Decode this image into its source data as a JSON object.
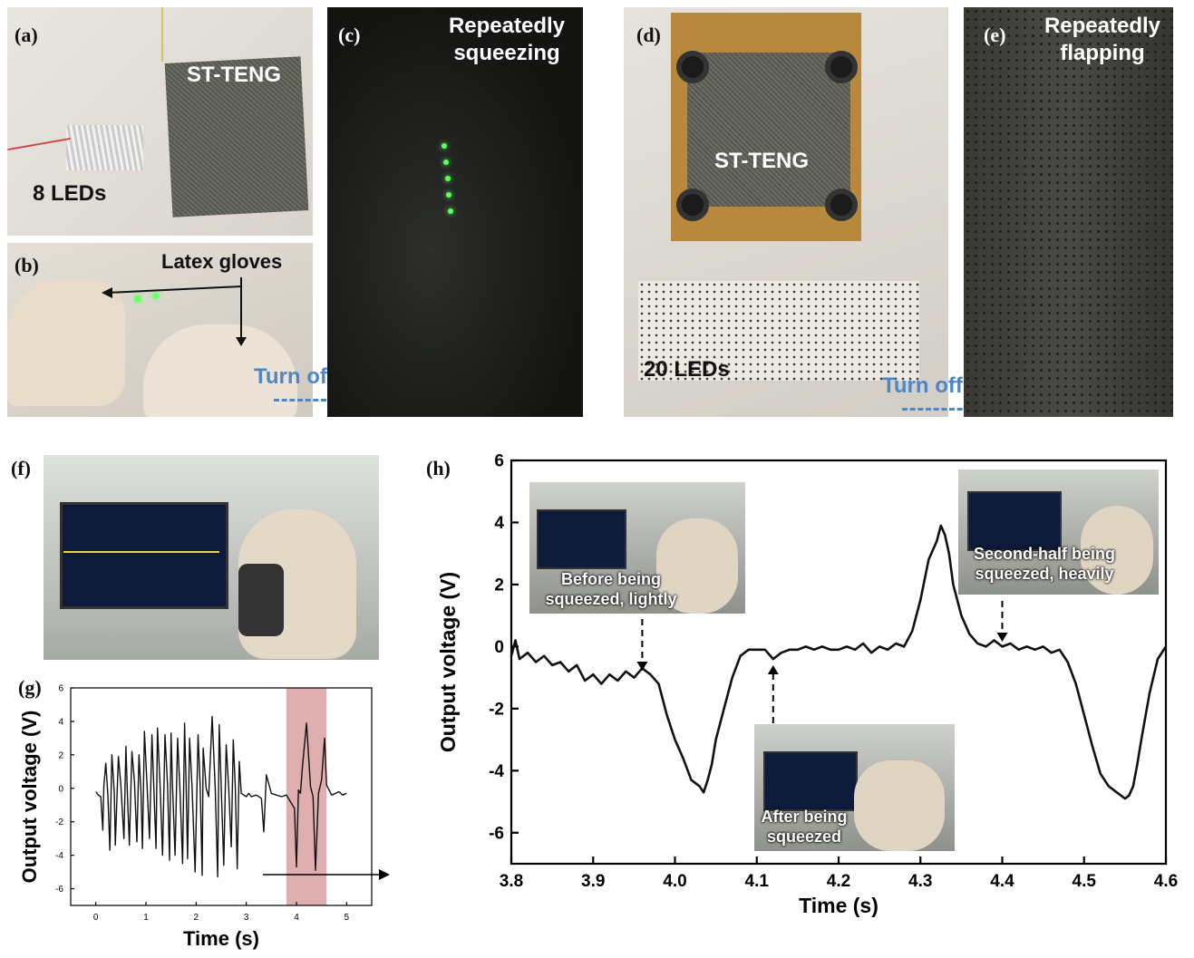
{
  "panels": {
    "a": {
      "label": "(a)",
      "device": "ST-TENG",
      "leds": "8 LEDs"
    },
    "b": {
      "label": "(b)",
      "gloves": "Latex gloves",
      "turn_off": "Turn off light"
    },
    "c": {
      "label": "(c)",
      "caption_line1": "Repeatedly",
      "caption_line2": "squeezing"
    },
    "d": {
      "label": "(d)",
      "device": "ST-TENG",
      "leds": "20 LEDs",
      "turn_off": "Turn off light"
    },
    "e": {
      "label": "(e)",
      "caption_line1": "Repeatedly",
      "caption_line2": "flapping"
    },
    "f": {
      "label": "(f)"
    },
    "g": {
      "label": "(g)"
    },
    "h": {
      "label": "(h)"
    }
  },
  "colors": {
    "highlight": "#d9a0a0",
    "arrow_text": "#4f86c6",
    "trace": "#111111"
  },
  "chart_data": [
    {
      "type": "line",
      "panel": "g",
      "xlabel": "Time (s)",
      "ylabel": "Output voltage (V)",
      "xlim": [
        -0.5,
        5.5
      ],
      "ylim": [
        -7,
        6
      ],
      "xticks": [
        0,
        1,
        2,
        3,
        4,
        5
      ],
      "yticks": [
        -6,
        -4,
        -2,
        0,
        2,
        4,
        6
      ],
      "highlight_region": [
        3.8,
        4.6
      ],
      "series": [
        {
          "x": [
            0.0,
            0.05,
            0.1,
            0.14,
            0.16,
            0.2,
            0.24,
            0.28,
            0.32,
            0.37,
            0.39,
            0.45,
            0.5,
            0.56,
            0.6,
            0.63,
            0.67,
            0.72,
            0.77,
            0.82,
            0.86,
            0.9,
            0.93,
            0.97,
            1.02,
            1.07,
            1.12,
            1.16,
            1.2,
            1.23,
            1.28,
            1.33,
            1.38,
            1.43,
            1.47,
            1.5,
            1.53,
            1.58,
            1.63,
            1.68,
            1.73,
            1.77,
            1.8,
            1.83,
            1.87,
            1.92,
            1.98,
            2.04,
            2.08,
            2.12,
            2.14,
            2.2,
            2.25,
            2.32,
            2.38,
            2.43,
            2.46,
            2.5,
            2.55,
            2.6,
            2.65,
            2.7,
            2.74,
            2.78,
            2.82,
            2.86,
            2.9,
            2.95,
            3.0,
            3.05,
            3.1,
            3.2,
            3.3,
            3.35,
            3.4,
            3.5,
            3.6,
            3.7,
            3.8,
            3.9,
            3.96,
            4.0,
            4.04,
            4.08,
            4.12,
            4.2,
            4.28,
            4.33,
            4.38,
            4.44,
            4.5,
            4.56,
            4.6,
            4.7,
            4.78,
            4.85,
            4.92,
            5.0
          ],
          "y": [
            -0.2,
            -0.4,
            -0.5,
            -2.5,
            0.1,
            1.5,
            -0.3,
            -3.7,
            2.0,
            -0.3,
            -3.4,
            1.9,
            0.2,
            -3.0,
            2.5,
            -0.3,
            -3.4,
            2.2,
            0.4,
            -3.2,
            2.0,
            -0.2,
            -3.6,
            3.4,
            0.3,
            -3.0,
            3.2,
            -0.3,
            -3.6,
            3.6,
            0.3,
            -4.0,
            3.2,
            0.2,
            -4.3,
            3.3,
            0.1,
            -4.0,
            3.0,
            -0.2,
            -4.5,
            3.9,
            0.2,
            -4.2,
            3.0,
            0.0,
            -5.0,
            3.2,
            0.1,
            -5.2,
            2.4,
            0.0,
            -0.5,
            4.3,
            0.0,
            -5.3,
            3.8,
            0.1,
            -4.6,
            2.6,
            0.0,
            -3.5,
            2.9,
            0.1,
            -4.8,
            1.6,
            -0.3,
            -0.4,
            -0.5,
            -0.3,
            -0.5,
            -0.4,
            -0.6,
            -2.6,
            0.8,
            -0.3,
            -0.4,
            -0.5,
            -0.4,
            -0.9,
            -1.2,
            -4.7,
            -0.1,
            -0.3,
            1.3,
            3.9,
            0.1,
            -0.5,
            -4.9,
            -0.3,
            0.5,
            3.0,
            0.2,
            -0.4,
            -0.3,
            -0.2,
            -0.4,
            -0.3
          ]
        }
      ]
    },
    {
      "type": "line",
      "panel": "h",
      "xlabel": "Time (s)",
      "ylabel": "Output voltage (V)",
      "xlim": [
        3.8,
        4.6
      ],
      "ylim": [
        -7,
        6
      ],
      "xticks": [
        3.8,
        3.9,
        4.0,
        4.1,
        4.2,
        4.3,
        4.4,
        4.5,
        4.6
      ],
      "yticks": [
        -6,
        -4,
        -2,
        0,
        2,
        4,
        6
      ],
      "series": [
        {
          "x": [
            3.8,
            3.805,
            3.81,
            3.82,
            3.83,
            3.84,
            3.85,
            3.86,
            3.87,
            3.88,
            3.89,
            3.9,
            3.91,
            3.92,
            3.93,
            3.94,
            3.95,
            3.96,
            3.97,
            3.98,
            3.99,
            4.0,
            4.01,
            4.02,
            4.03,
            4.035,
            4.04,
            4.045,
            4.05,
            4.06,
            4.07,
            4.08,
            4.09,
            4.1,
            4.11,
            4.12,
            4.13,
            4.14,
            4.15,
            4.16,
            4.17,
            4.18,
            4.19,
            4.2,
            4.21,
            4.22,
            4.23,
            4.24,
            4.25,
            4.26,
            4.27,
            4.28,
            4.29,
            4.3,
            4.31,
            4.32,
            4.325,
            4.33,
            4.335,
            4.34,
            4.35,
            4.36,
            4.37,
            4.38,
            4.39,
            4.4,
            4.41,
            4.42,
            4.43,
            4.44,
            4.45,
            4.46,
            4.47,
            4.48,
            4.49,
            4.5,
            4.51,
            4.52,
            4.53,
            4.54,
            4.55,
            4.555,
            4.56,
            4.565,
            4.57,
            4.58,
            4.59,
            4.6
          ],
          "y": [
            -0.3,
            0.2,
            -0.4,
            -0.2,
            -0.5,
            -0.3,
            -0.6,
            -0.5,
            -0.8,
            -0.6,
            -1.1,
            -0.9,
            -1.2,
            -0.9,
            -1.1,
            -0.8,
            -1.0,
            -0.7,
            -0.9,
            -1.2,
            -2.2,
            -3.0,
            -3.6,
            -4.3,
            -4.5,
            -4.7,
            -4.3,
            -3.8,
            -3.0,
            -2.0,
            -1.0,
            -0.3,
            -0.1,
            -0.1,
            -0.1,
            -0.4,
            -0.2,
            -0.1,
            -0.1,
            0.0,
            -0.1,
            0.0,
            -0.1,
            -0.1,
            0.0,
            -0.1,
            0.1,
            -0.2,
            0.0,
            -0.1,
            0.1,
            0.0,
            0.5,
            1.5,
            2.8,
            3.4,
            3.9,
            3.6,
            3.0,
            2.0,
            1.0,
            0.4,
            0.1,
            0.0,
            0.2,
            0.0,
            0.1,
            -0.1,
            0.0,
            -0.1,
            0.0,
            -0.2,
            -0.1,
            -0.5,
            -1.2,
            -2.2,
            -3.2,
            -4.1,
            -4.5,
            -4.7,
            -4.9,
            -4.8,
            -4.5,
            -3.8,
            -3.0,
            -1.5,
            -0.4,
            0.0
          ]
        }
      ],
      "annotations": [
        {
          "text": "Before being\nsqueezed, lightly",
          "x": 3.96,
          "y": -0.6
        },
        {
          "text": "After being\nsqueezed",
          "x": 4.12,
          "y": -0.6
        },
        {
          "text": "Second-half being\nsqueezed, heavily",
          "x": 4.4,
          "y": 0.4
        }
      ]
    }
  ]
}
